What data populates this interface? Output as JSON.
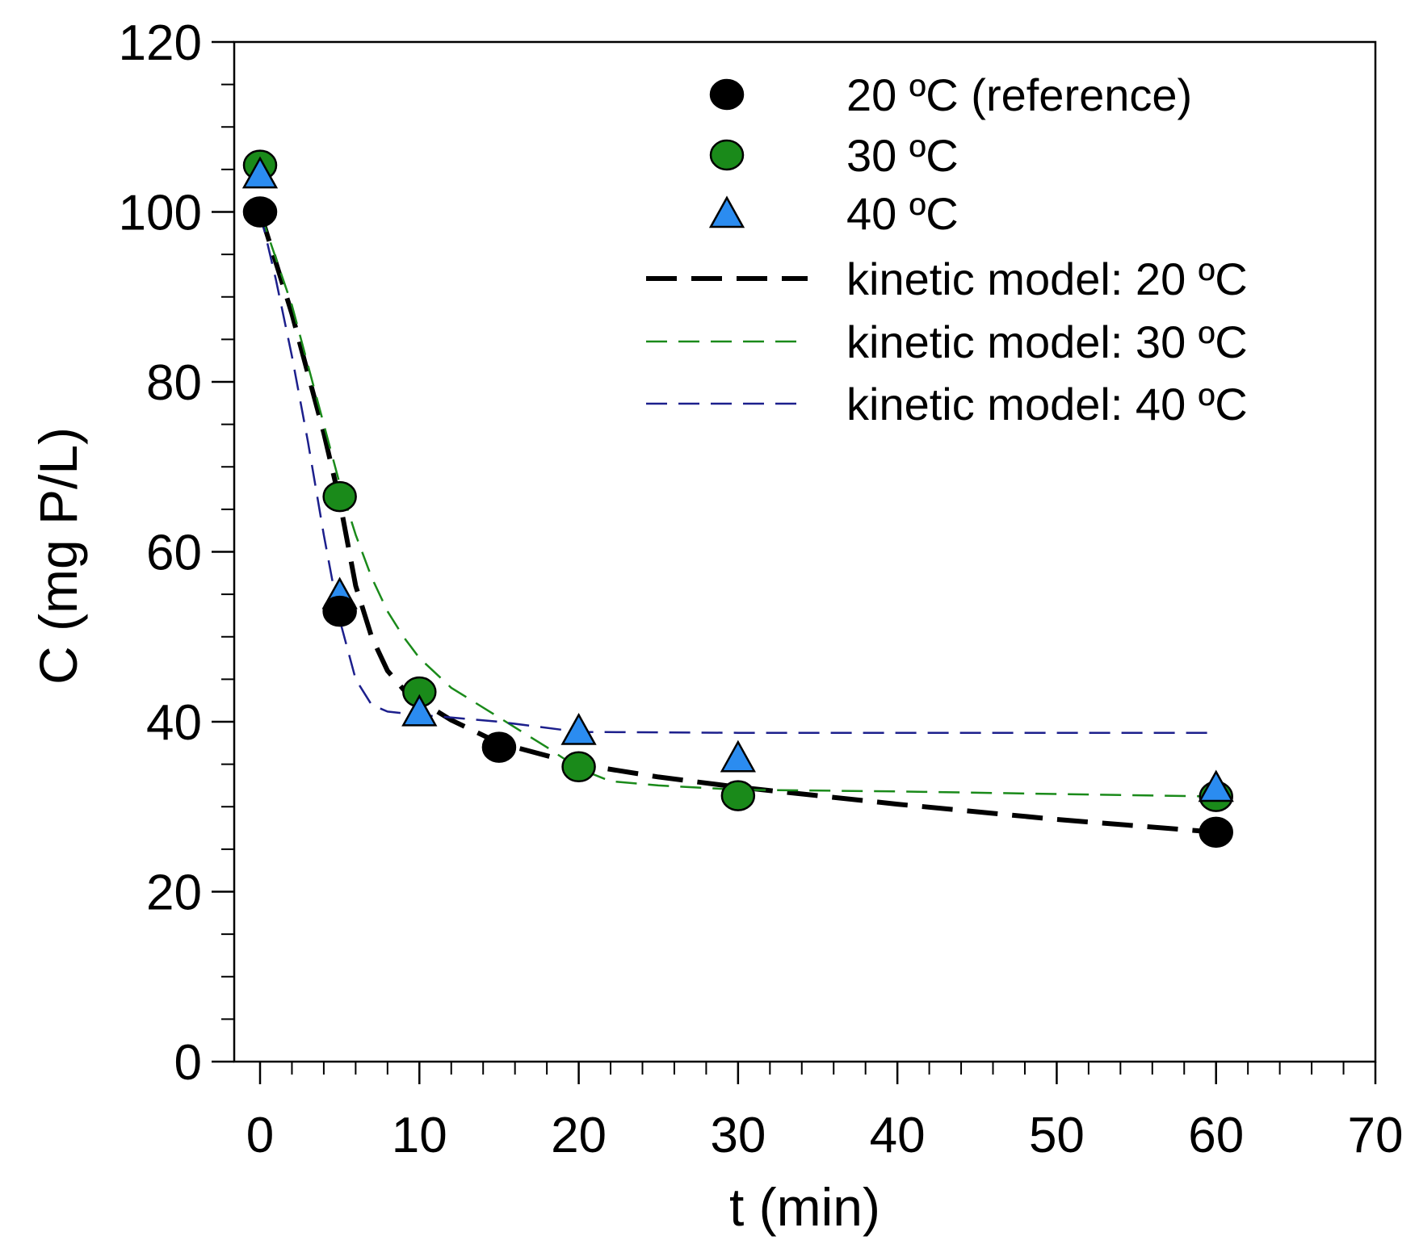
{
  "chart_data": {
    "type": "scatter",
    "title": "",
    "xlabel": "t (min)",
    "ylabel": "C (mg P/L)",
    "xlim": [
      0,
      70
    ],
    "ylim": [
      0,
      120
    ],
    "x_ticks": [
      0,
      10,
      20,
      30,
      40,
      50,
      60,
      70
    ],
    "y_ticks": [
      0,
      20,
      40,
      60,
      80,
      100,
      120
    ],
    "x_minor_step": 2,
    "y_minor_step": 5,
    "legend_position": "top-right",
    "series": [
      {
        "name": "20 ºC (reference)",
        "kind": "points",
        "marker": "circle",
        "color": "#000000",
        "x": [
          0,
          5,
          15,
          60
        ],
        "y": [
          100,
          53,
          37,
          27
        ]
      },
      {
        "name": "30 ºC",
        "kind": "points",
        "marker": "circle",
        "color": "#1a8a1a",
        "x": [
          0,
          5,
          10,
          20,
          30,
          60
        ],
        "y": [
          105.5,
          66.5,
          43.5,
          34.7,
          31.3,
          31.2
        ]
      },
      {
        "name": "40 ºC",
        "kind": "points",
        "marker": "triangle",
        "color": "#2b8cf0",
        "x": [
          0,
          5,
          10,
          20,
          30,
          60
        ],
        "y": [
          104.5,
          55,
          41.2,
          39,
          35.8,
          32.3
        ]
      },
      {
        "name": "kinetic model: 20 ºC",
        "kind": "line",
        "color": "#000000",
        "dash": "thick",
        "x": [
          0,
          2,
          3,
          4,
          5,
          6,
          7,
          8,
          9,
          10,
          12,
          15,
          20,
          25,
          30,
          40,
          50,
          60
        ],
        "y": [
          100,
          88,
          81,
          74,
          66,
          56,
          50,
          46,
          43.8,
          42.5,
          40.2,
          37.5,
          35,
          33.5,
          32.3,
          30.3,
          28.5,
          27
        ]
      },
      {
        "name": "kinetic model: 30 ºC",
        "kind": "line",
        "color": "#1a8a1a",
        "dash": "thin",
        "x": [
          0,
          2,
          3,
          4,
          5,
          6,
          7,
          8,
          9,
          10,
          12,
          15,
          18,
          20,
          22,
          25,
          30,
          40,
          50,
          60
        ],
        "y": [
          100,
          89,
          82,
          75,
          68,
          62,
          57,
          53,
          50,
          47.5,
          44,
          40.5,
          37,
          34.5,
          33,
          32.5,
          32,
          31.8,
          31.5,
          31.2
        ]
      },
      {
        "name": "kinetic model: 40 ºC",
        "kind": "line",
        "color": "#1c1f8c",
        "dash": "thin",
        "x": [
          0,
          1,
          2,
          3,
          4,
          5,
          6,
          7,
          8,
          10,
          12,
          15,
          20,
          30,
          40,
          50,
          60
        ],
        "y": [
          100,
          92,
          83,
          73,
          62,
          52,
          45,
          42,
          41.2,
          40.8,
          40.5,
          40,
          38.8,
          38.7,
          38.7,
          38.7,
          38.7
        ]
      }
    ]
  }
}
